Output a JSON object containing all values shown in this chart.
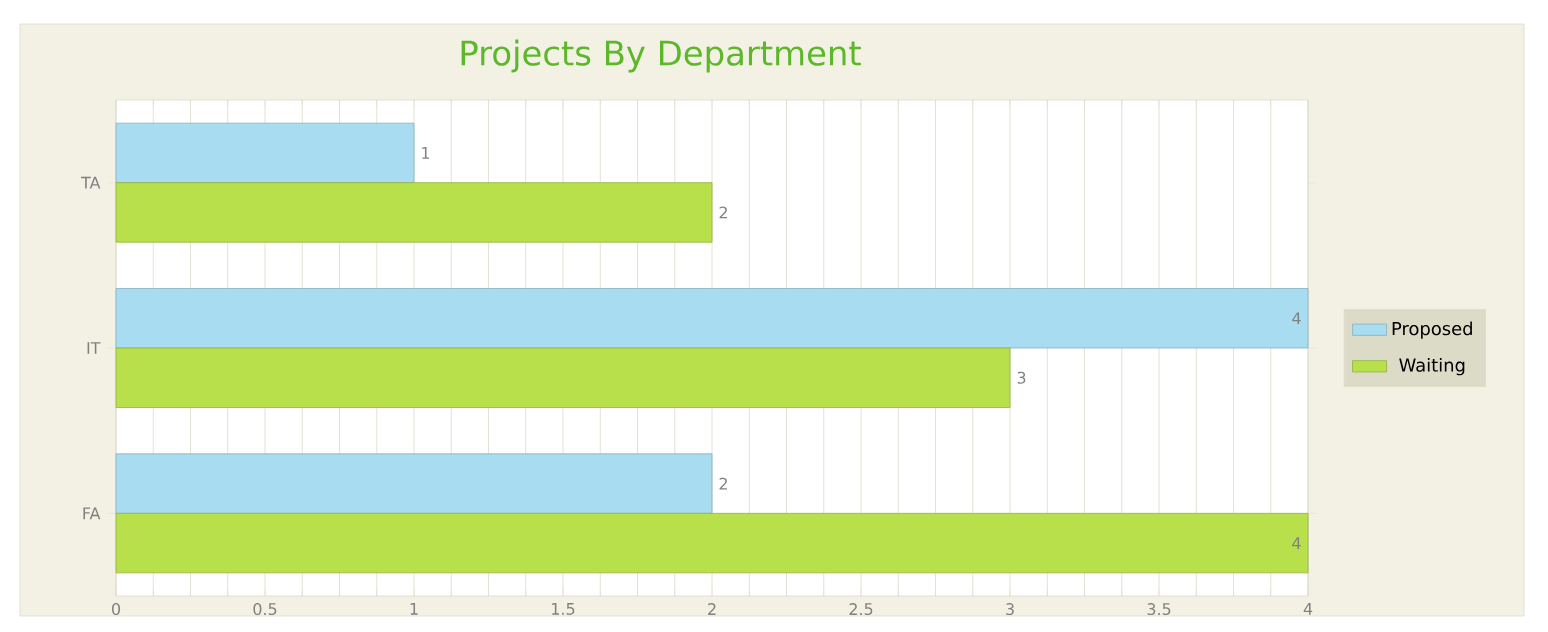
{
  "chart_data": {
    "type": "bar",
    "orientation": "horizontal",
    "title": "Projects By Department",
    "categories": [
      "TA",
      "IT",
      "FA"
    ],
    "series": [
      {
        "name": "Proposed",
        "color": "#a8dcf0",
        "values": [
          1,
          4,
          2
        ]
      },
      {
        "name": "Waiting",
        "color": "#b8e04a",
        "values": [
          2,
          3,
          4
        ]
      }
    ],
    "xlim": [
      0,
      4
    ],
    "xticks": [
      0,
      0.5,
      1,
      1.5,
      2,
      2.5,
      3,
      3.5,
      4
    ],
    "grid": "x",
    "legend": "right",
    "data_labels": true
  }
}
